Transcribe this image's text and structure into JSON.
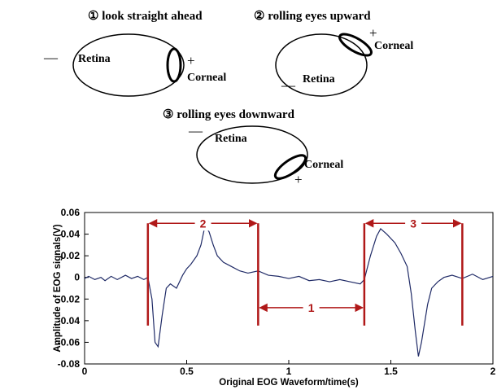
{
  "diagram": {
    "captions": [
      "① look straight ahead",
      "② rolling eyes upward",
      "③ rolling eyes downward"
    ],
    "eyes": [
      {
        "retina": "Retina",
        "corneal": "Corneal",
        "plus": "+",
        "minus": "—"
      },
      {
        "retina": "Retina",
        "corneal": "Corneal",
        "plus": "+",
        "minus": "—"
      },
      {
        "retina": "Retina",
        "corneal": "Corneal",
        "plus": "+",
        "minus": "—"
      }
    ]
  },
  "chart_data": {
    "type": "line",
    "xlabel": "Original EOG Waveform/time(s)",
    "ylabel": "Amplitude of EOG signals(V)",
    "color": "#1f2a66",
    "x": [
      0,
      0.02,
      0.05,
      0.08,
      0.1,
      0.13,
      0.16,
      0.2,
      0.23,
      0.26,
      0.29,
      0.31,
      0.33,
      0.345,
      0.36,
      0.38,
      0.4,
      0.42,
      0.45,
      0.48,
      0.5,
      0.52,
      0.55,
      0.57,
      0.59,
      0.61,
      0.63,
      0.65,
      0.68,
      0.72,
      0.76,
      0.8,
      0.85,
      0.9,
      0.95,
      1.0,
      1.05,
      1.1,
      1.15,
      1.2,
      1.25,
      1.3,
      1.35,
      1.37,
      1.4,
      1.43,
      1.45,
      1.48,
      1.52,
      1.55,
      1.58,
      1.6,
      1.62,
      1.635,
      1.65,
      1.68,
      1.7,
      1.73,
      1.76,
      1.8,
      1.85,
      1.9,
      1.95,
      2.0
    ],
    "values": [
      -0.001,
      0.001,
      -0.002,
      0,
      -0.003,
      0.001,
      -0.002,
      0.002,
      -0.001,
      0.001,
      -0.002,
      0,
      -0.02,
      -0.06,
      -0.064,
      -0.035,
      -0.01,
      -0.006,
      -0.01,
      0.002,
      0.008,
      0.012,
      0.02,
      0.03,
      0.048,
      0.042,
      0.03,
      0.02,
      0.014,
      0.01,
      0.006,
      0.004,
      0.006,
      0.002,
      0.001,
      -0.001,
      0.001,
      -0.003,
      -0.002,
      -0.004,
      -0.002,
      -0.004,
      -0.006,
      -0.002,
      0.02,
      0.038,
      0.045,
      0.04,
      0.032,
      0.022,
      0.01,
      -0.015,
      -0.05,
      -0.073,
      -0.06,
      -0.025,
      -0.01,
      -0.004,
      0,
      0.002,
      -0.001,
      0.003,
      -0.002,
      0.001
    ],
    "xlim": [
      0,
      2
    ],
    "ylim": [
      -0.08,
      0.06
    ],
    "xticks": [
      0,
      0.5,
      1,
      1.5,
      2
    ],
    "yticks": [
      -0.08,
      -0.06,
      -0.04,
      -0.02,
      0,
      0.02,
      0.04,
      0.06
    ],
    "annotation_color": "#b01818",
    "annotations": [
      {
        "label": "2",
        "x_start": 0.31,
        "x_end": 0.85,
        "y": 0.05
      },
      {
        "label": "1",
        "x_start": 0.85,
        "x_end": 1.37,
        "y": -0.028
      },
      {
        "label": "3",
        "x_start": 1.37,
        "x_end": 1.85,
        "y": 0.05
      }
    ]
  }
}
